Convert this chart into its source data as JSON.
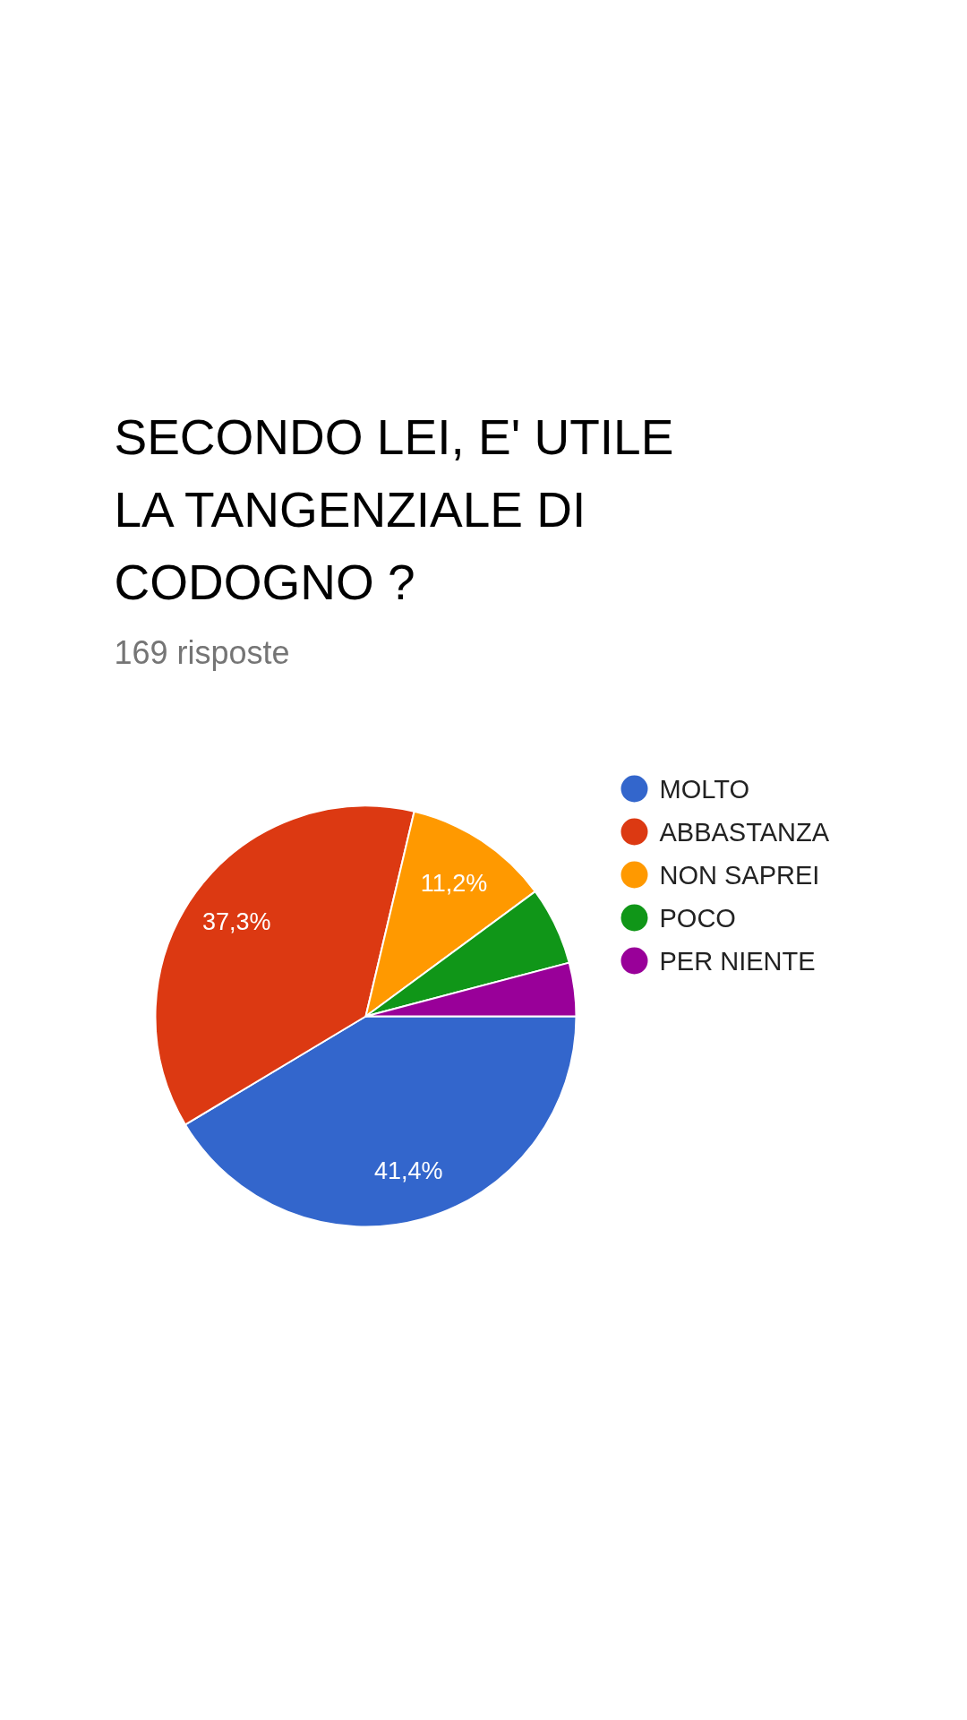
{
  "chart_data": {
    "type": "pie",
    "title": "SECONDO LEI, E' UTILE LA TANGENZIALE DI CODOGNO ?",
    "subtitle": "169 risposte",
    "categories": [
      "MOLTO",
      "ABBASTANZA",
      "NON SAPREI",
      "POCO",
      "PER NIENTE"
    ],
    "values": [
      41.4,
      37.3,
      11.2,
      6.0,
      4.1
    ],
    "colors": [
      "#3366cc",
      "#dc3912",
      "#ff9900",
      "#109618",
      "#990099"
    ],
    "value_labels": [
      "41,4%",
      "37,3%",
      "11,2%",
      null,
      null
    ],
    "legend": "right"
  }
}
